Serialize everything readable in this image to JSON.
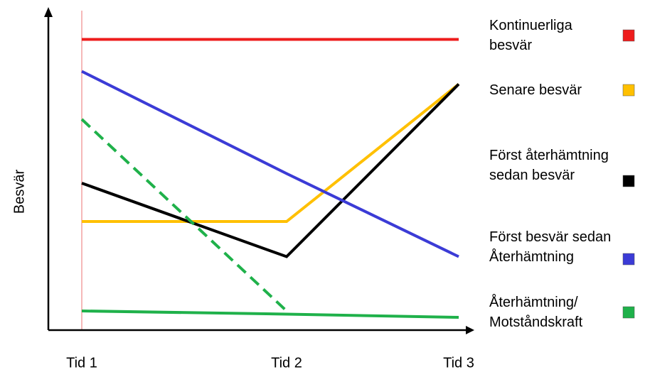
{
  "chart_data": {
    "type": "line",
    "ylabel": "Besvär",
    "categories": [
      "Tid 1",
      "Tid 2",
      "Tid 3"
    ],
    "ylim": [
      0,
      100
    ],
    "series": [
      {
        "name": "Kontinuerliga besvär",
        "color": "#ee1c1c",
        "values": [
          91,
          91,
          91
        ]
      },
      {
        "name": "Senare besvär",
        "color": "#ffc000",
        "values": [
          34,
          34,
          77
        ]
      },
      {
        "name": "Först återhämtning sedan besvär",
        "color": "#000000",
        "values": [
          46,
          23,
          77
        ]
      },
      {
        "name": "Först besvär sedan Återhämtning",
        "color": "#3b3bd6",
        "values": [
          81,
          49,
          23
        ]
      },
      {
        "name": "Återhämtning/ Motståndskraft",
        "color": "#1fb14a",
        "values": [
          6,
          5,
          4
        ]
      },
      {
        "color": "#1fb14a",
        "dash": true,
        "values": [
          66,
          6,
          null
        ]
      }
    ]
  }
}
